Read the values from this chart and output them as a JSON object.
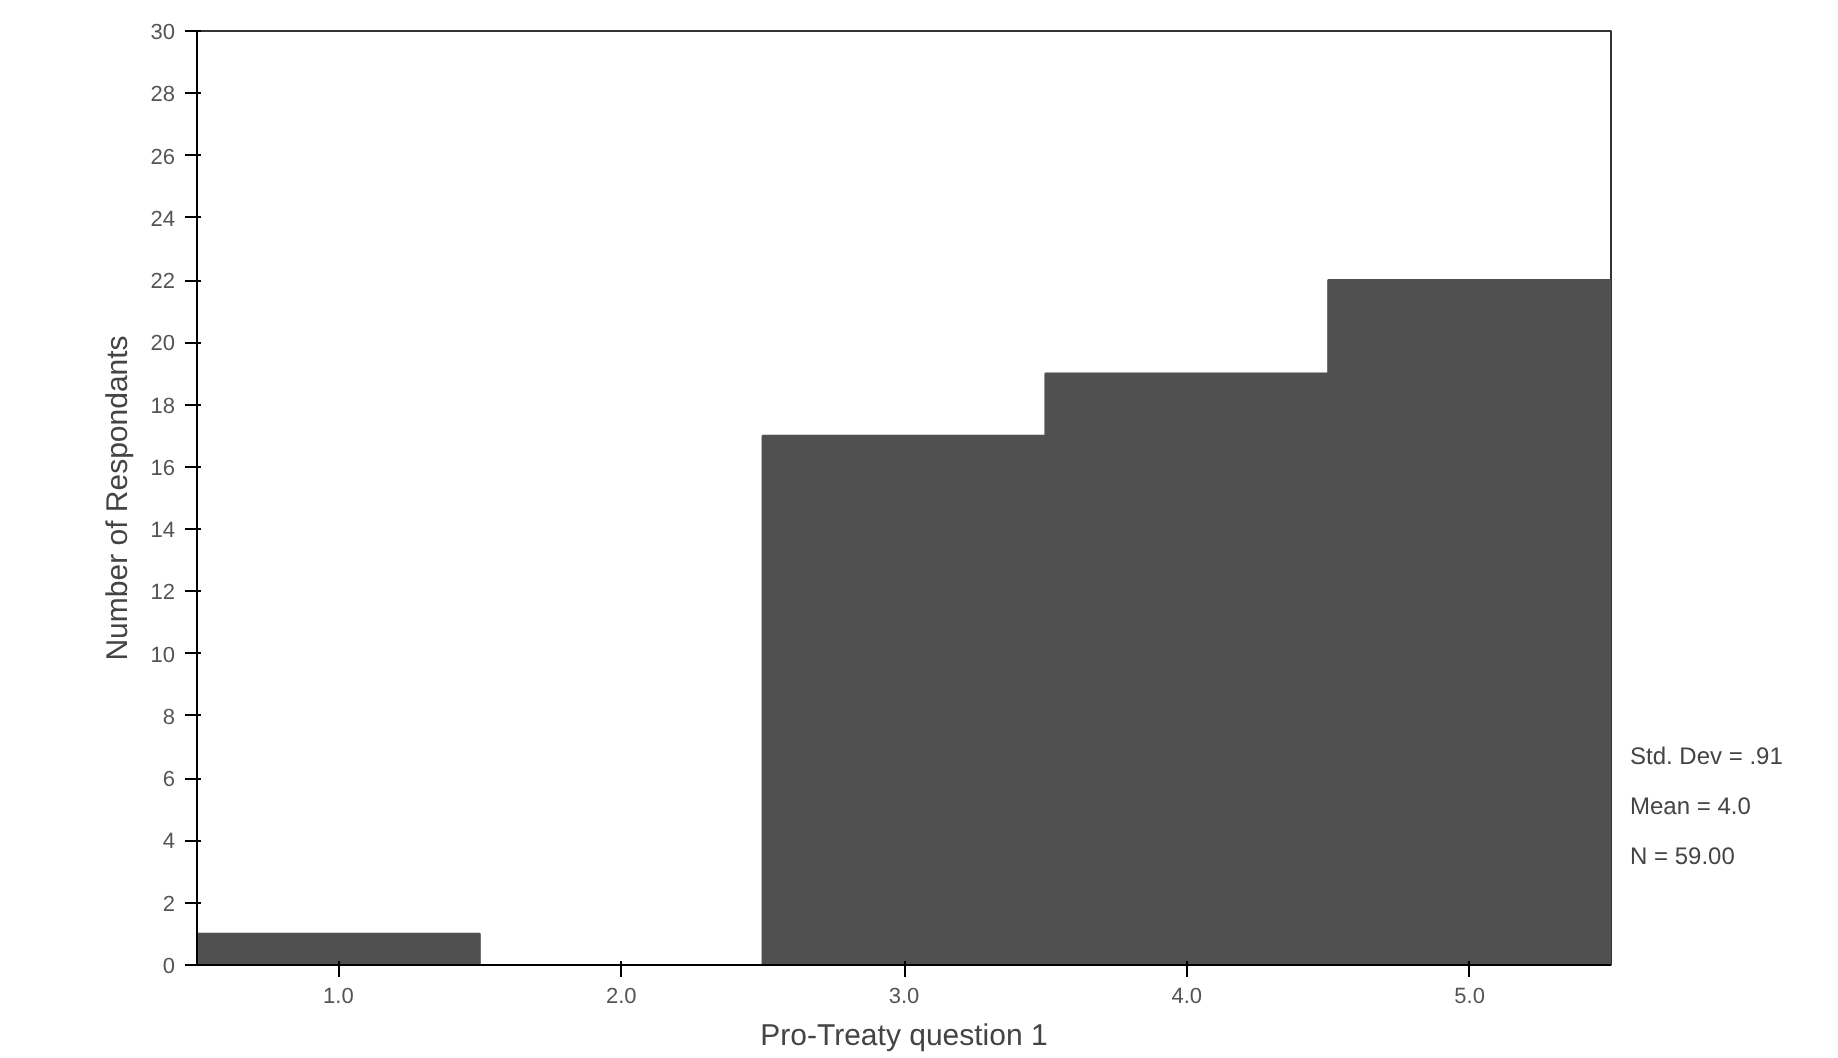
{
  "chart_data": {
    "type": "histogram",
    "xlabel": "Pro-Treaty question 1",
    "ylabel": "Number of Respondants",
    "bins": [
      0.5,
      1.5,
      2.5,
      3.5,
      4.5,
      5.5
    ],
    "values": [
      1,
      0,
      17,
      19,
      22
    ],
    "color": "#505050",
    "xlim": [
      0.5,
      5.5
    ],
    "xticks": [
      {
        "value": 1,
        "label": "1.0"
      },
      {
        "value": 2,
        "label": "2.0"
      },
      {
        "value": 3,
        "label": "3.0"
      },
      {
        "value": 4,
        "label": "4.0"
      },
      {
        "value": 5,
        "label": "5.0"
      }
    ],
    "ylim": [
      0,
      30
    ],
    "yticks": [
      0,
      2,
      4,
      6,
      8,
      10,
      12,
      14,
      16,
      18,
      20,
      22,
      24,
      26,
      28,
      30
    ],
    "grid": false,
    "annotations": [
      "Std. Dev = .91",
      "Mean = 4.0",
      "N = 59.00"
    ]
  }
}
